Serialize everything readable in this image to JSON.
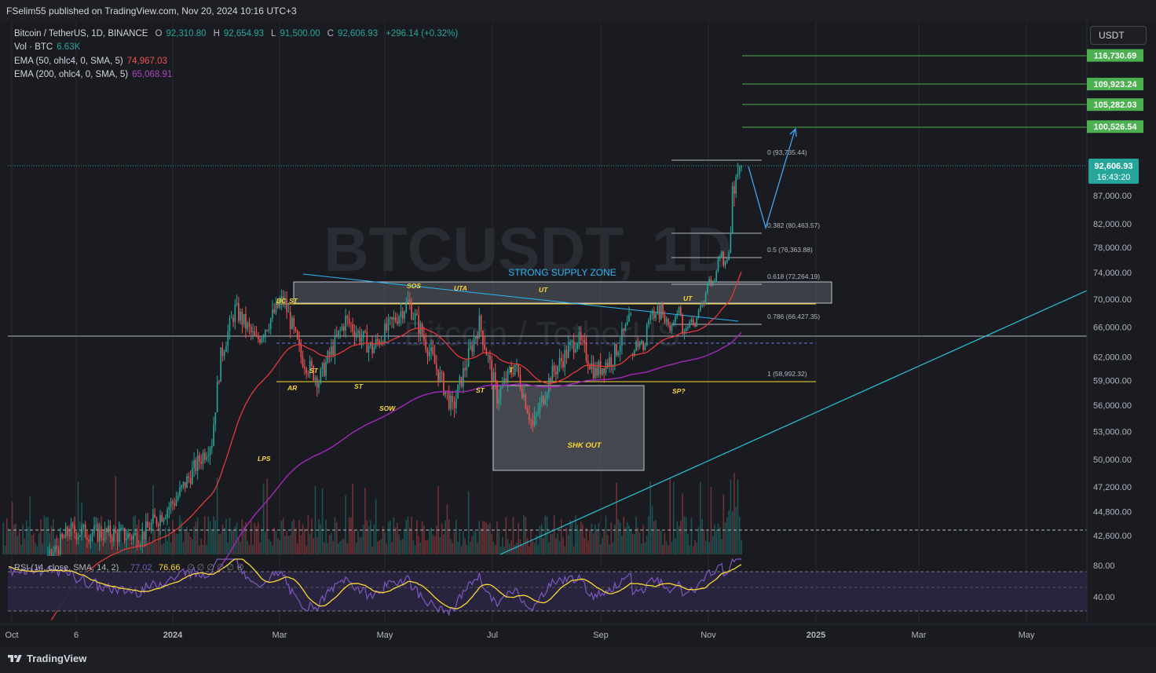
{
  "header": {
    "publisher": "FSelim55 published on TradingView.com, Nov 20, 2024 10:16 UTC+3"
  },
  "legend": {
    "symbol": "Bitcoin / TetherUS, 1D, BINANCE",
    "o_label": "O",
    "o": "92,310.80",
    "h_label": "H",
    "h": "92,654.93",
    "l_label": "L",
    "l": "91,500.00",
    "c_label": "C",
    "c": "92,606.93",
    "change": "+296.14 (+0.32%)",
    "vol_label": "Vol · BTC",
    "vol": "6.63K",
    "ema50_label": "EMA (50, ohlc4, 0, SMA, 5)",
    "ema50": "74,967.03",
    "ema200_label": "EMA (200, ohlc4, 0, SMA, 5)",
    "ema200": "65,068.91"
  },
  "currency_button": "USDT",
  "footer": {
    "brand": "TradingView"
  },
  "colors": {
    "up": "#26a69a",
    "down": "#ef5350",
    "ema50": "#e53935",
    "ema200": "#9c27b0",
    "rsi": "#7e57c2",
    "rsi_ma": "#fdd835",
    "target": "#4caf50",
    "trend": "#29b6f6",
    "annotation": "#fdd835",
    "supply_text": "#29b6f6"
  },
  "chart_data": {
    "type": "candlestick",
    "symbol": "BTCUSDT",
    "interval": "1D",
    "watermark": [
      "BTCUSDT, 1D",
      "Bitcoin / TetherUS"
    ],
    "x_ticks": [
      "Oct",
      "6",
      "2024",
      "Mar",
      "May",
      "Jul",
      "Sep",
      "Nov",
      "2025",
      "Mar",
      "May"
    ],
    "y_ticks": [
      "87,000.00",
      "82,000.00",
      "78,000.00",
      "74,000.00",
      "70,000.00",
      "66,000.00",
      "62,000.00",
      "59,000.00",
      "56,000.00",
      "53,000.00",
      "50,000.00",
      "47,200.00",
      "44,800.00",
      "42,600.00"
    ],
    "price_axis_scale": "log",
    "last_price": "92,606.93",
    "countdown": "16:43:20",
    "target_levels": [
      "116,730.69",
      "109,923.24",
      "105,282.03",
      "100,526.54"
    ],
    "fibonacci": [
      {
        "label": "0 (93,735.44)"
      },
      {
        "label": "0.382 (80,463.57)"
      },
      {
        "label": "0.5 (76,363.88)"
      },
      {
        "label": "0.618 (72,264.19)"
      },
      {
        "label": "0.786 (66,427.35)"
      },
      {
        "label": "1 (58,992.32)"
      }
    ],
    "zones": [
      "STRONG SUPPLY ZONE",
      "SHK OUT"
    ],
    "wyckoff_labels": [
      "BC",
      "ST",
      "AR",
      "ST",
      "ST",
      "SOW",
      "SOS",
      "UTA",
      "UT",
      "ST",
      "T",
      "UT",
      "SP?",
      "LPS"
    ],
    "rsi": {
      "label": "RSI (14, close, SMA, 14, 2)",
      "rsi_value": "77.02",
      "ma_value": "76.66",
      "extra": "∅ ∅ ∅ ∅ ∅ ∅",
      "ticks": [
        "80.00",
        "40.00"
      ],
      "levels": [
        70,
        50,
        30
      ]
    },
    "candles": [
      [
        62500,
        62500,
        61600,
        62200
      ],
      [
        62200,
        63000,
        62000,
        62800
      ],
      [
        62800,
        64200,
        62700,
        64000
      ],
      [
        64000,
        64600,
        62800,
        63300
      ],
      [
        63300,
        64100,
        63000,
        63800
      ],
      [
        63800,
        64300,
        63600,
        64100
      ],
      [
        64100,
        64100,
        62600,
        62900
      ],
      [
        62900,
        63800,
        62800,
        63500
      ],
      [
        63500,
        66600,
        63400,
        66300
      ],
      [
        66300,
        67300,
        65800,
        66900
      ],
      [
        66900,
        68300,
        66400,
        67700
      ],
      [
        67700,
        68600,
        67000,
        68300
      ],
      [
        68300,
        68900,
        66800,
        67200
      ],
      [
        67200,
        68100,
        66800,
        67900
      ],
      [
        67900,
        69400,
        67700,
        69000
      ],
      [
        69000,
        69300,
        66600,
        67100
      ],
      [
        67100,
        69600,
        66900,
        69300
      ],
      [
        69300,
        69600,
        67300,
        67700
      ],
      [
        67700,
        68300,
        66400,
        66700
      ],
      [
        66700,
        67500,
        66100,
        67100
      ],
      [
        67100,
        67300,
        65900,
        66300
      ],
      [
        66300,
        66700,
        65200,
        65500
      ],
      [
        65500,
        66500,
        65100,
        66300
      ],
      [
        66300,
        67000,
        66100,
        66700
      ],
      [
        66700,
        67700,
        66400,
        67500
      ],
      [
        67500,
        68400,
        67100,
        67900
      ],
      [
        67900,
        69000,
        67700,
        68800
      ],
      [
        68800,
        69100,
        67500,
        67700
      ],
      [
        67700,
        67900,
        64900,
        65100
      ],
      [
        65100,
        65800,
        64300,
        65400
      ],
      [
        65400,
        66200,
        65000,
        65800
      ],
      [
        65800,
        66300,
        65500,
        66000
      ],
      [
        66000,
        67000,
        65800,
        66700
      ],
      [
        66700,
        67400,
        66400,
        67100
      ],
      [
        67100,
        67600,
        66100,
        66400
      ],
      [
        66400,
        66700,
        65900,
        66100
      ],
      [
        66100,
        67400,
        66000,
        67300
      ],
      [
        67300,
        68600,
        67100,
        68300
      ],
      [
        68300,
        69300,
        68100,
        69000
      ],
      [
        69000,
        69800,
        68700,
        69400
      ],
      [
        69400,
        69800,
        68800,
        69200
      ],
      [
        69200,
        71200,
        69100,
        70900
      ],
      [
        70900,
        72600,
        70700,
        72400
      ],
      [
        72400,
        73400,
        72000,
        73000
      ],
      [
        73000,
        73500,
        71800,
        72000
      ],
      [
        72000,
        72800,
        71900,
        72500
      ],
      [
        72500,
        73100,
        72400,
        72700
      ],
      [
        72700,
        74500,
        72500,
        74200
      ],
      [
        74200,
        76600,
        74000,
        76400
      ],
      [
        76400,
        76900,
        75800,
        76500
      ],
      [
        76500,
        77500,
        76300,
        77300
      ],
      [
        77300,
        77500,
        74800,
        75100
      ],
      [
        75100,
        75900,
        74600,
        75700
      ],
      [
        75700,
        76300,
        75400,
        76000
      ],
      [
        76000,
        77600,
        75900,
        77200
      ],
      [
        77200,
        81500,
        77000,
        80400
      ],
      [
        80400,
        89500,
        80200,
        88700
      ],
      [
        88700,
        89700,
        85000,
        87300
      ],
      [
        87300,
        91000,
        86600,
        90500
      ],
      [
        90500,
        93200,
        89900,
        91000
      ],
      [
        91000,
        92700,
        90100,
        92300
      ],
      [
        92300,
        92700,
        91500,
        92600
      ]
    ]
  }
}
